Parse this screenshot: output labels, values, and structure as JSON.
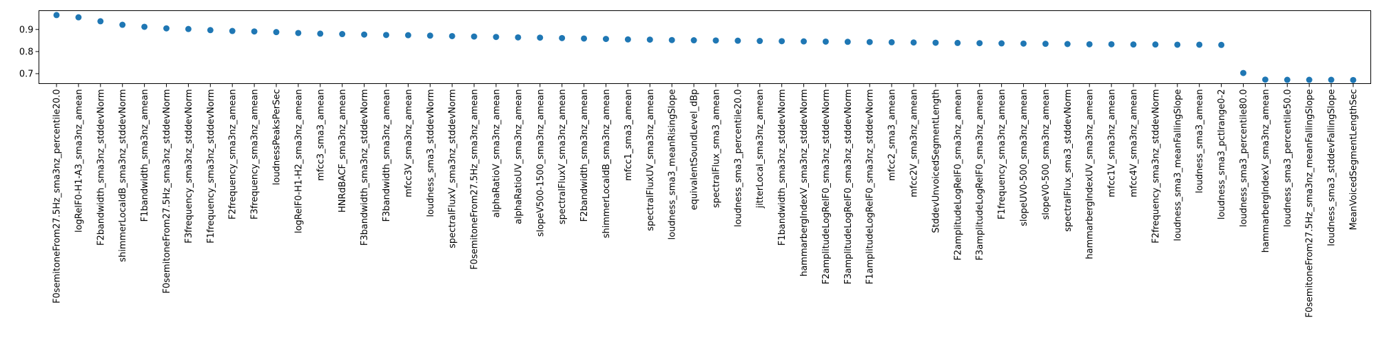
{
  "chart_data": {
    "type": "scatter",
    "title": "",
    "xlabel": "",
    "ylabel": "",
    "ylim": [
      0.655,
      0.985
    ],
    "yticks": [
      0.7,
      0.8,
      0.9
    ],
    "ytick_labels": [
      "0.7",
      "0.8",
      "0.9"
    ],
    "grid": false,
    "marker_color": "#1f77b4",
    "categories": [
      "F0semitoneFrom27.5Hz_sma3nz_percentile20.0",
      "logRelF0-H1-A3_sma3nz_amean",
      "F2bandwidth_sma3nz_stddevNorm",
      "shimmerLocaldB_sma3nz_stddevNorm",
      "F1bandwidth_sma3nz_amean",
      "F0semitoneFrom27.5Hz_sma3nz_stddevNorm",
      "F3frequency_sma3nz_stddevNorm",
      "F1frequency_sma3nz_stddevNorm",
      "F2frequency_sma3nz_amean",
      "F3frequency_sma3nz_amean",
      "loudnessPeaksPerSec",
      "logRelF0-H1-H2_sma3nz_amean",
      "mfcc3_sma3_amean",
      "HNRdBACF_sma3nz_amean",
      "F3bandwidth_sma3nz_stddevNorm",
      "F3bandwidth_sma3nz_amean",
      "mfcc3V_sma3nz_amean",
      "loudness_sma3_stddevNorm",
      "spectralFluxV_sma3nz_stddevNorm",
      "F0semitoneFrom27.5Hz_sma3nz_amean",
      "alphaRatioV_sma3nz_amean",
      "alphaRatioUV_sma3nz_amean",
      "slopeV500-1500_sma3nz_amean",
      "spectralFluxV_sma3nz_amean",
      "F2bandwidth_sma3nz_amean",
      "shimmerLocaldB_sma3nz_amean",
      "mfcc1_sma3_amean",
      "spectralFluxUV_sma3nz_amean",
      "loudness_sma3_meanRisingSlope",
      "equivalentSoundLevel_dBp",
      "spectralFlux_sma3_amean",
      "loudness_sma3_percentile20.0",
      "jitterLocal_sma3nz_amean",
      "F1bandwidth_sma3nz_stddevNorm",
      "hammarbergIndexV_sma3nz_stddevNorm",
      "F2amplitudeLogRelF0_sma3nz_stddevNorm",
      "F3amplitudeLogRelF0_sma3nz_stddevNorm",
      "F1amplitudeLogRelF0_sma3nz_stddevNorm",
      "mfcc2_sma3_amean",
      "mfcc2V_sma3nz_amean",
      "StddevUnvoicedSegmentLength",
      "F2amplitudeLogRelF0_sma3nz_amean",
      "F3amplitudeLogRelF0_sma3nz_amean",
      "F1frequency_sma3nz_amean",
      "slopeUV0-500_sma3nz_amean",
      "slopeV0-500_sma3nz_amean",
      "spectralFlux_sma3_stddevNorm",
      "hammarbergIndexUV_sma3nz_amean",
      "mfcc1V_sma3nz_amean",
      "mfcc4V_sma3nz_amean",
      "F2frequency_sma3nz_stddevNorm",
      "loudness_sma3_meanFallingSlope",
      "loudness_sma3_amean",
      "loudness_sma3_pctlrange0-2",
      "loudness_sma3_percentile80.0",
      "hammarbergIndexV_sma3nz_amean",
      "loudness_sma3_percentile50.0",
      "F0semitoneFrom27.5Hz_sma3nz_meanFallingSlope",
      "loudness_sma3_stddevFallingSlope",
      "MeanVoicedSegmentLengthSec"
    ],
    "values": [
      0.965,
      0.955,
      0.937,
      0.921,
      0.912,
      0.905,
      0.902,
      0.897,
      0.893,
      0.891,
      0.888,
      0.884,
      0.881,
      0.879,
      0.877,
      0.875,
      0.874,
      0.872,
      0.87,
      0.868,
      0.866,
      0.864,
      0.863,
      0.861,
      0.859,
      0.857,
      0.855,
      0.854,
      0.852,
      0.851,
      0.85,
      0.849,
      0.848,
      0.847,
      0.846,
      0.845,
      0.844,
      0.843,
      0.842,
      0.841,
      0.84,
      0.839,
      0.838,
      0.837,
      0.836,
      0.835,
      0.834,
      0.833,
      0.833,
      0.832,
      0.832,
      0.831,
      0.831,
      0.83,
      0.703,
      0.673,
      0.672,
      0.672,
      0.672,
      0.671
    ]
  }
}
